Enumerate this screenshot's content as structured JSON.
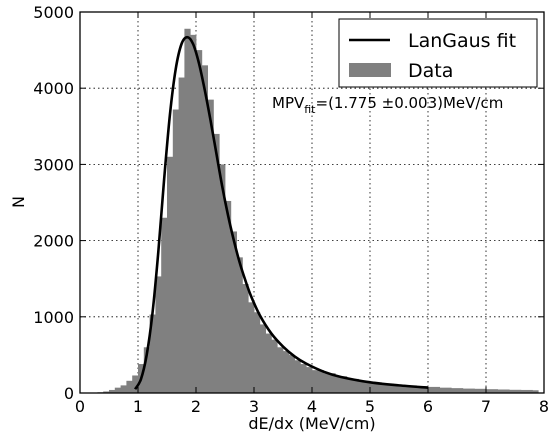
{
  "chart_data": {
    "type": "bar",
    "xlabel": "dE/dx (MeV/cm)",
    "ylabel": "N",
    "xlim": [
      0,
      8
    ],
    "ylim": [
      0,
      5000
    ],
    "x_ticks": [
      "0",
      "1",
      "2",
      "3",
      "4",
      "5",
      "6",
      "7",
      "8"
    ],
    "y_ticks": [
      "0",
      "1000",
      "2000",
      "3000",
      "4000",
      "5000"
    ],
    "grid": true,
    "legend_position": "top-right",
    "colors": {
      "data": "#808080",
      "fit": "#000000"
    },
    "series": [
      {
        "name": "Data",
        "type": "histogram",
        "bin_width": 0.1,
        "bin_edges_start": [
          0.3,
          0.4,
          0.5,
          0.6,
          0.7,
          0.8,
          0.9,
          1.0,
          1.1,
          1.2,
          1.3,
          1.4,
          1.5,
          1.6,
          1.7,
          1.8,
          1.9,
          2.0,
          2.1,
          2.2,
          2.3,
          2.4,
          2.5,
          2.6,
          2.7,
          2.8,
          2.9,
          3.0,
          3.1,
          3.2,
          3.3,
          3.4,
          3.5,
          3.6,
          3.7,
          3.8,
          3.9,
          4.0,
          4.2,
          4.4,
          4.6,
          4.8,
          5.0,
          5.2,
          5.4,
          5.6,
          5.8,
          6.0,
          6.2,
          6.4,
          6.6,
          6.8,
          7.0,
          7.2,
          7.4,
          7.6,
          7.8
        ],
        "values": [
          10,
          20,
          40,
          70,
          100,
          160,
          230,
          380,
          600,
          1030,
          1530,
          2300,
          3100,
          3720,
          4140,
          4780,
          4700,
          4500,
          4300,
          3850,
          3400,
          3000,
          2520,
          2120,
          1780,
          1430,
          1190,
          1060,
          900,
          780,
          700,
          600,
          550,
          500,
          430,
          380,
          340,
          300,
          260,
          220,
          185,
          160,
          140,
          125,
          110,
          100,
          90,
          80,
          70,
          64,
          58,
          55,
          50,
          46,
          42,
          40,
          36
        ]
      },
      {
        "name": "LanGaus fit",
        "type": "line",
        "x": [
          0.95,
          1.05,
          1.15,
          1.25,
          1.35,
          1.45,
          1.55,
          1.65,
          1.75,
          1.85,
          1.95,
          2.05,
          2.15,
          2.25,
          2.35,
          2.45,
          2.55,
          2.65,
          2.75,
          2.85,
          2.95,
          3.1,
          3.3,
          3.5,
          3.7,
          3.9,
          4.2,
          4.5,
          5.0,
          5.5,
          6.0
        ],
        "y": [
          50,
          180,
          500,
          1050,
          1850,
          2800,
          3650,
          4250,
          4580,
          4670,
          4580,
          4330,
          3980,
          3580,
          3150,
          2720,
          2340,
          2010,
          1720,
          1480,
          1270,
          1020,
          780,
          610,
          480,
          385,
          280,
          210,
          140,
          100,
          70
        ]
      }
    ],
    "annotation": {
      "main": "MPV",
      "sub": "fit",
      "rest": "=(1.775 ±0.003)MeV/cm"
    }
  }
}
